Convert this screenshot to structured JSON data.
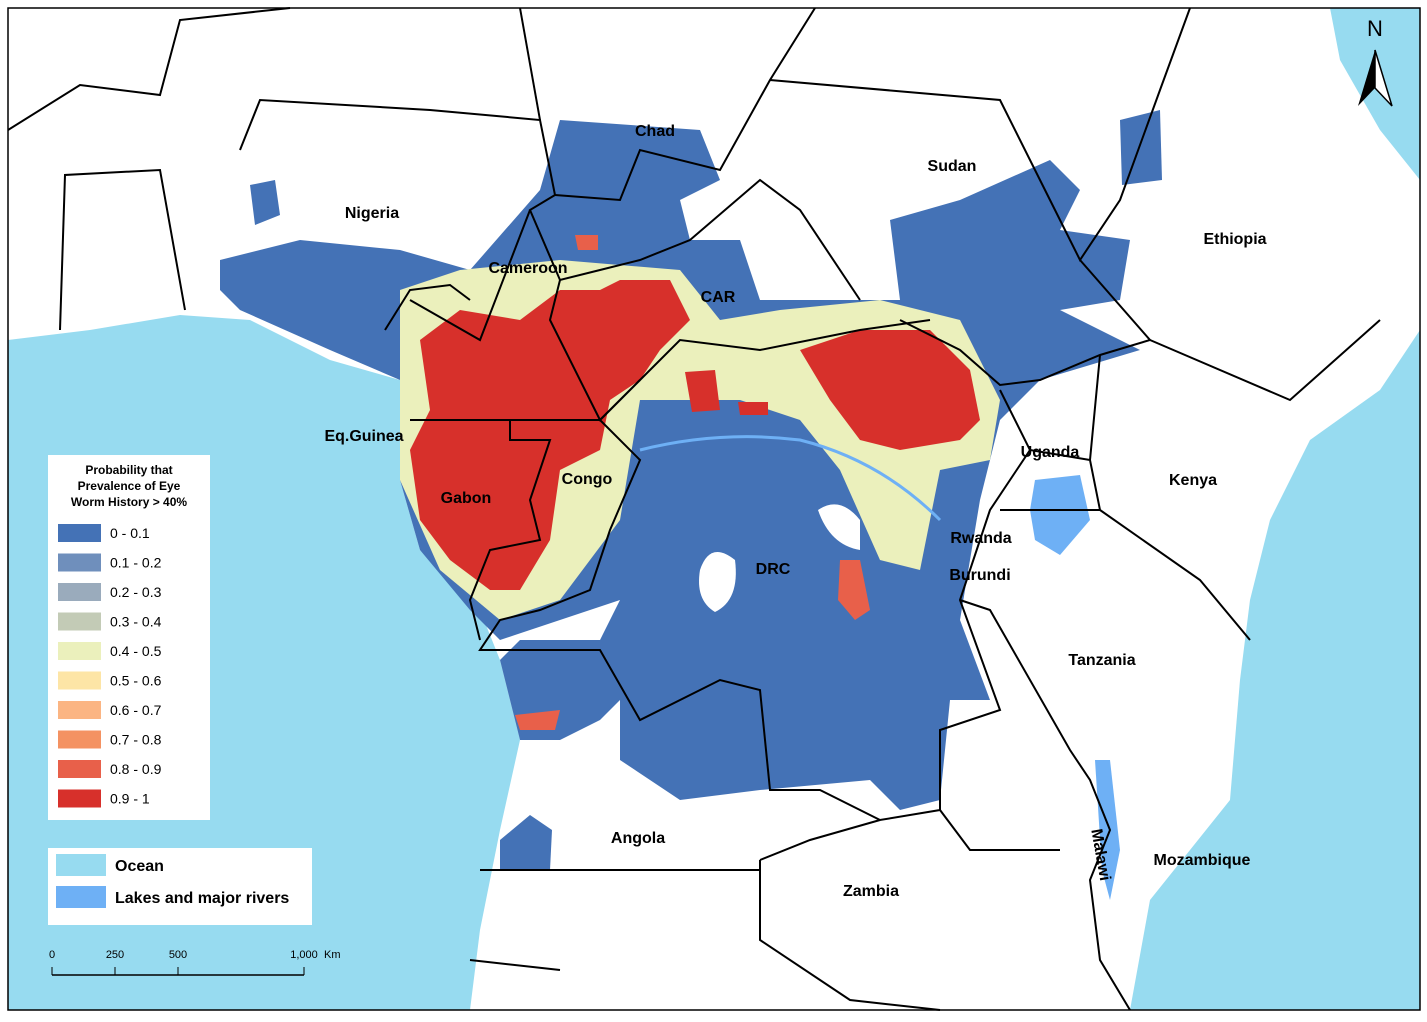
{
  "map": {
    "north_arrow": "N",
    "places": [
      "Chad",
      "Sudan",
      "Nigeria",
      "Ethiopia",
      "Cameroon",
      "CAR",
      "Eq.Guinea",
      "Uganda",
      "Kenya",
      "Congo",
      "Gabon",
      "Rwanda",
      "Burundi",
      "DRC",
      "Tanzania",
      "Angola",
      "Zambia",
      "Malawi",
      "Mozambique"
    ],
    "legend": {
      "title": [
        "Probability that",
        "Prevalence of Eye",
        "Worm History > 40%"
      ],
      "classes": [
        {
          "label": "0 - 0.1",
          "color": "#4472b6"
        },
        {
          "label": "0.1 - 0.2",
          "color": "#6f8fbc"
        },
        {
          "label": "0.2 - 0.3",
          "color": "#9aabbc"
        },
        {
          "label": "0.3 - 0.4",
          "color": "#c3cbb6"
        },
        {
          "label": "0.4 - 0.5",
          "color": "#ebf0bc"
        },
        {
          "label": "0.5 - 0.6",
          "color": "#fde5a6"
        },
        {
          "label": "0.6 - 0.7",
          "color": "#fbb583"
        },
        {
          "label": "0.7 - 0.8",
          "color": "#f49262"
        },
        {
          "label": "0.8 - 0.9",
          "color": "#e8604a"
        },
        {
          "label": "0.9 - 1",
          "color": "#d7302b"
        }
      ]
    },
    "water_legend": [
      {
        "label": "Ocean",
        "color": "#97dbf0"
      },
      {
        "label": "Lakes and major rivers",
        "color": "#6eb0f5"
      }
    ],
    "scale_bar": {
      "ticks": [
        0,
        250,
        500,
        {
          "value": 1000,
          "label": "1,000"
        }
      ],
      "unit": "Km"
    }
  }
}
